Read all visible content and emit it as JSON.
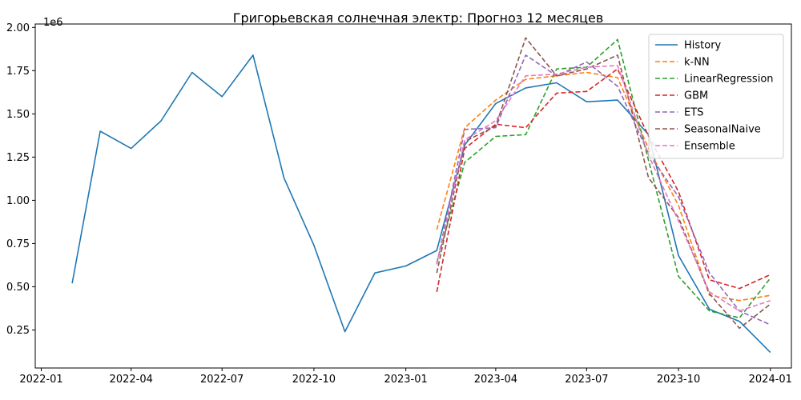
{
  "chart_data": {
    "type": "line",
    "title": "Григорьевская солнечная электр: Прогноз 12 месяцев",
    "y_offset_label": "1e6",
    "y_scale": 1000000,
    "ylim": [
      0.03,
      2.02
    ],
    "xlim": [
      "2021-12-26",
      "2024-01-22"
    ],
    "x_ticks": [
      "2022-01-01",
      "2022-04-01",
      "2022-07-01",
      "2022-10-01",
      "2023-01-01",
      "2023-04-01",
      "2023-07-01",
      "2023-10-01",
      "2024-01-01"
    ],
    "x_tick_labels": [
      "2022-01",
      "2022-04",
      "2022-07",
      "2022-10",
      "2023-01",
      "2023-04",
      "2023-07",
      "2023-10",
      "2024-01"
    ],
    "y_ticks": [
      0.25,
      0.5,
      0.75,
      1.0,
      1.25,
      1.5,
      1.75,
      2.0
    ],
    "y_tick_labels": [
      "0.25",
      "0.50",
      "0.75",
      "1.00",
      "1.25",
      "1.50",
      "1.75",
      "2.00"
    ],
    "grid": false,
    "legend_position": "top-right",
    "series": [
      {
        "name": "History",
        "color": "#1f77b4",
        "dash": "solid",
        "x": [
          "2022-02-01",
          "2022-03-01",
          "2022-04-01",
          "2022-05-01",
          "2022-06-01",
          "2022-07-01",
          "2022-08-01",
          "2022-09-01",
          "2022-10-01",
          "2022-11-01",
          "2022-12-01",
          "2023-01-01",
          "2023-02-01",
          "2023-03-01",
          "2023-04-01",
          "2023-05-01",
          "2023-06-01",
          "2023-07-01",
          "2023-08-01",
          "2023-09-01",
          "2023-10-01",
          "2023-11-01",
          "2023-12-01",
          "2024-01-01"
        ],
        "y": [
          0.52,
          1.4,
          1.3,
          1.46,
          1.74,
          1.6,
          1.84,
          1.13,
          0.74,
          0.24,
          0.58,
          0.62,
          0.71,
          1.32,
          1.56,
          1.65,
          1.68,
          1.57,
          1.58,
          1.38,
          0.68,
          0.37,
          0.3,
          0.12
        ]
      },
      {
        "name": "k-NN",
        "color": "#ff7f0e",
        "dash": "dashed",
        "x": [
          "2023-02-01",
          "2023-03-01",
          "2023-04-01",
          "2023-05-01",
          "2023-06-01",
          "2023-07-01",
          "2023-08-01",
          "2023-09-01",
          "2023-10-01",
          "2023-11-01",
          "2023-12-01",
          "2024-01-01"
        ],
        "y": [
          0.83,
          1.42,
          1.58,
          1.7,
          1.72,
          1.74,
          1.71,
          1.3,
          0.97,
          0.45,
          0.42,
          0.45
        ]
      },
      {
        "name": "LinearRegression",
        "color": "#2ca02c",
        "dash": "dashed",
        "x": [
          "2023-02-01",
          "2023-03-01",
          "2023-04-01",
          "2023-05-01",
          "2023-06-01",
          "2023-07-01",
          "2023-08-01",
          "2023-09-01",
          "2023-10-01",
          "2023-11-01",
          "2023-12-01",
          "2024-01-01"
        ],
        "y": [
          0.64,
          1.22,
          1.37,
          1.38,
          1.76,
          1.77,
          1.93,
          1.23,
          0.56,
          0.36,
          0.32,
          0.55
        ]
      },
      {
        "name": "GBM",
        "color": "#d62728",
        "dash": "dashed",
        "x": [
          "2023-02-01",
          "2023-03-01",
          "2023-04-01",
          "2023-05-01",
          "2023-06-01",
          "2023-07-01",
          "2023-08-01",
          "2023-09-01",
          "2023-10-01",
          "2023-11-01",
          "2023-12-01",
          "2024-01-01"
        ],
        "y": [
          0.47,
          1.3,
          1.44,
          1.42,
          1.62,
          1.63,
          1.76,
          1.37,
          1.05,
          0.54,
          0.49,
          0.57
        ]
      },
      {
        "name": "ETS",
        "color": "#9467bd",
        "dash": "dashed",
        "x": [
          "2023-02-01",
          "2023-03-01",
          "2023-04-01",
          "2023-05-01",
          "2023-06-01",
          "2023-07-01",
          "2023-08-01",
          "2023-09-01",
          "2023-10-01",
          "2023-11-01",
          "2023-12-01",
          "2024-01-01"
        ],
        "y": [
          0.63,
          1.41,
          1.42,
          1.84,
          1.72,
          1.8,
          1.66,
          1.27,
          1.02,
          0.58,
          0.36,
          0.28
        ]
      },
      {
        "name": "SeasonalNaive",
        "color": "#8c564b",
        "dash": "dashed",
        "x": [
          "2023-02-01",
          "2023-03-01",
          "2023-04-01",
          "2023-05-01",
          "2023-06-01",
          "2023-07-01",
          "2023-08-01",
          "2023-09-01",
          "2023-10-01",
          "2023-11-01",
          "2023-12-01",
          "2024-01-01"
        ],
        "y": [
          0.58,
          1.34,
          1.43,
          1.94,
          1.72,
          1.76,
          1.84,
          1.13,
          0.9,
          0.46,
          0.26,
          0.4
        ]
      },
      {
        "name": "Ensemble",
        "color": "#e377c2",
        "dash": "dashed",
        "x": [
          "2023-02-01",
          "2023-03-01",
          "2023-04-01",
          "2023-05-01",
          "2023-06-01",
          "2023-07-01",
          "2023-08-01",
          "2023-09-01",
          "2023-10-01",
          "2023-11-01",
          "2023-12-01",
          "2024-01-01"
        ],
        "y": [
          0.63,
          1.35,
          1.46,
          1.72,
          1.73,
          1.77,
          1.78,
          1.26,
          0.88,
          0.47,
          0.36,
          0.42
        ]
      }
    ]
  }
}
